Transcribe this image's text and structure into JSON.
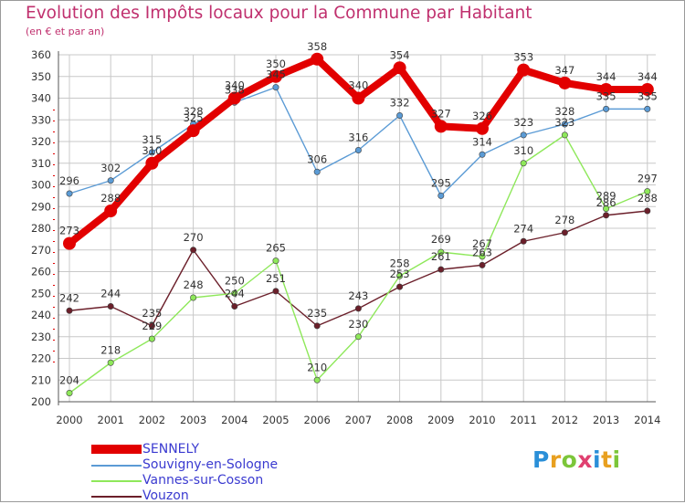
{
  "header": {
    "title": "Evolution des Impôts locaux pour la Commune par Habitant",
    "subtitle": "(en € et par an)"
  },
  "logo": {
    "text": "Proxiti"
  },
  "colors": {
    "title": "#c0306e",
    "grid": "#c8c8c8",
    "axis_text": "#333333",
    "legend_text": "#3a3ad0"
  },
  "chart_data": {
    "type": "line",
    "title": "Evolution des Impôts locaux pour la Commune par Habitant",
    "subtitle": "(en € et par an)",
    "xlabel": "",
    "ylabel": "",
    "categories": [
      "2000",
      "2001",
      "2002",
      "2003",
      "2004",
      "2005",
      "2006",
      "2007",
      "2008",
      "2009",
      "2010",
      "2011",
      "2012",
      "2013",
      "2014"
    ],
    "ylim": [
      200,
      360
    ],
    "yticks": [
      200,
      210,
      220,
      230,
      240,
      250,
      260,
      270,
      280,
      290,
      300,
      310,
      320,
      330,
      340,
      350,
      360
    ],
    "grid": true,
    "legend_position": "bottom-left",
    "series": [
      {
        "name": "SENNELY",
        "color": "#e20000",
        "values": [
          273,
          288,
          310,
          325,
          340,
          350,
          358,
          340,
          354,
          327,
          326,
          353,
          347,
          344,
          344
        ]
      },
      {
        "name": "Souvigny-en-Sologne",
        "color": "#5b9bd5",
        "values": [
          296,
          302,
          315,
          328,
          338,
          345,
          306,
          316,
          332,
          295,
          314,
          323,
          328,
          335,
          335
        ]
      },
      {
        "name": "Vannes-sur-Cosson",
        "color": "#8ee85a",
        "values": [
          204,
          218,
          229,
          248,
          250,
          265,
          210,
          230,
          258,
          269,
          267,
          310,
          323,
          289,
          297
        ]
      },
      {
        "name": "Vouzon",
        "color": "#6b1f2a",
        "values": [
          242,
          244,
          235,
          270,
          244,
          251,
          235,
          243,
          253,
          261,
          263,
          274,
          278,
          286,
          288
        ]
      }
    ],
    "data_labels": [
      [
        "273",
        "288",
        "310",
        "325",
        "340",
        "350",
        "358",
        "340",
        "354",
        "327",
        "326",
        "353",
        "347",
        "344",
        "344"
      ],
      [
        "296",
        "302",
        "315",
        "328",
        "338",
        "345",
        "306",
        "316",
        "332",
        "295",
        "314",
        "323",
        "328",
        "335",
        "335"
      ],
      [
        "204",
        "218",
        "229",
        "248",
        "250",
        "265",
        "210",
        "230",
        "258",
        "269",
        "267",
        "310",
        "323",
        "289",
        "297"
      ],
      [
        "242",
        "244",
        "235",
        "270",
        "244",
        "251",
        "235",
        "243",
        "253",
        "261",
        "263",
        "274",
        "278",
        "286",
        "288"
      ]
    ]
  }
}
